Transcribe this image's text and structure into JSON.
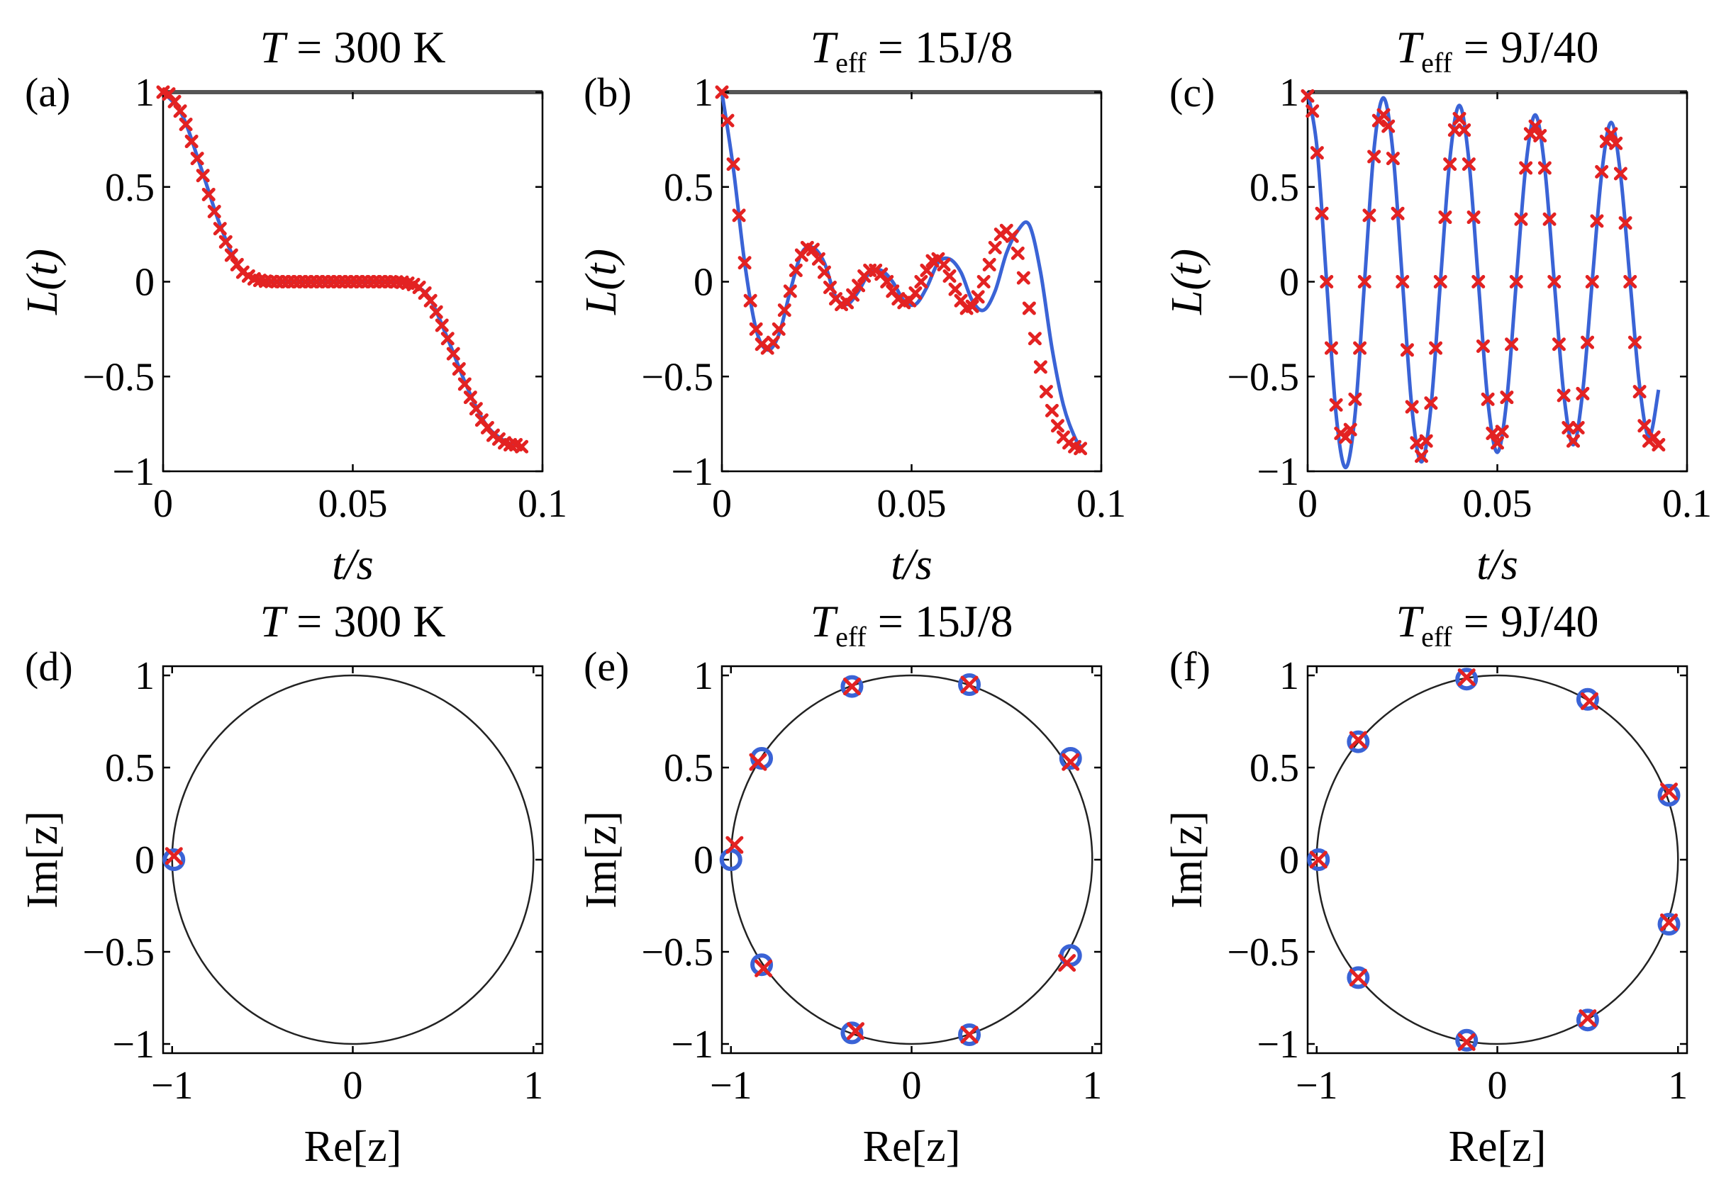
{
  "chart_data": [
    {
      "id": "a",
      "label": "(a)",
      "type": "line",
      "title": {
        "main": "T",
        "sub": "",
        "rest": " = 300 K"
      },
      "xlabel": "t/s",
      "ylabel": "L(t)",
      "xlim": [
        0,
        0.1
      ],
      "ylim": [
        -1,
        1
      ],
      "xticks": [
        0,
        0.05,
        0.1
      ],
      "xtick_labels": [
        "0",
        "0.05",
        "0.1"
      ],
      "yticks": [
        -1,
        -0.5,
        0,
        0.5,
        1
      ],
      "ytick_labels": [
        "−1",
        "−0.5",
        "0",
        "0.5",
        "1"
      ],
      "series": [
        {
          "style": "blue-line",
          "x": [
            0,
            0.005,
            0.01,
            0.015,
            0.02,
            0.025,
            0.03,
            0.04,
            0.05,
            0.06,
            0.065,
            0.07,
            0.075,
            0.08,
            0.085,
            0.09,
            0.093,
            0.095
          ],
          "y": [
            1,
            0.88,
            0.6,
            0.3,
            0.08,
            0.01,
            0,
            0,
            0,
            0,
            -0.01,
            -0.08,
            -0.3,
            -0.55,
            -0.75,
            -0.84,
            -0.86,
            -0.87
          ]
        },
        {
          "style": "red-x",
          "x": [
            0,
            0.0015,
            0.003,
            0.0045,
            0.006,
            0.0075,
            0.009,
            0.0105,
            0.012,
            0.0135,
            0.015,
            0.0165,
            0.018,
            0.0195,
            0.021,
            0.0225,
            0.024,
            0.0255,
            0.027,
            0.0285,
            0.03,
            0.0315,
            0.033,
            0.0345,
            0.036,
            0.0375,
            0.039,
            0.0405,
            0.042,
            0.0435,
            0.045,
            0.0465,
            0.048,
            0.0495,
            0.051,
            0.0525,
            0.054,
            0.0555,
            0.057,
            0.0585,
            0.06,
            0.0615,
            0.063,
            0.0645,
            0.066,
            0.0675,
            0.069,
            0.0705,
            0.072,
            0.0735,
            0.075,
            0.0765,
            0.078,
            0.0795,
            0.081,
            0.0825,
            0.084,
            0.0855,
            0.087,
            0.0885,
            0.09,
            0.0915,
            0.093,
            0.0945
          ],
          "y": [
            1,
            0.99,
            0.95,
            0.9,
            0.83,
            0.74,
            0.65,
            0.56,
            0.46,
            0.37,
            0.28,
            0.21,
            0.14,
            0.09,
            0.05,
            0.03,
            0.015,
            0.007,
            0.003,
            0.001,
            0,
            0,
            0,
            0,
            0,
            0,
            0,
            0,
            0,
            0,
            0,
            0,
            0,
            0,
            0,
            0,
            0,
            0,
            0,
            0,
            0,
            -0.001,
            -0.003,
            -0.008,
            -0.015,
            -0.03,
            -0.06,
            -0.1,
            -0.16,
            -0.23,
            -0.3,
            -0.38,
            -0.46,
            -0.54,
            -0.61,
            -0.67,
            -0.73,
            -0.77,
            -0.81,
            -0.83,
            -0.85,
            -0.86,
            -0.86,
            -0.87
          ]
        }
      ]
    },
    {
      "id": "b",
      "label": "(b)",
      "type": "line",
      "title": {
        "main": "T",
        "sub": "eff",
        "rest": " = 15J/8"
      },
      "xlabel": "t/s",
      "ylabel": "L(t)",
      "xlim": [
        0,
        0.1
      ],
      "ylim": [
        -1,
        1
      ],
      "xticks": [
        0,
        0.05,
        0.1
      ],
      "xtick_labels": [
        "0",
        "0.05",
        "0.1"
      ],
      "yticks": [
        -1,
        -0.5,
        0,
        0.5,
        1
      ],
      "ytick_labels": [
        "−1",
        "−0.5",
        "0",
        "0.5",
        "1"
      ],
      "series": [
        {
          "style": "blue-line",
          "x": [
            0,
            0.003,
            0.006,
            0.009,
            0.012,
            0.015,
            0.018,
            0.021,
            0.024,
            0.027,
            0.03,
            0.033,
            0.036,
            0.039,
            0.042,
            0.045,
            0.048,
            0.051,
            0.054,
            0.057,
            0.06,
            0.063,
            0.066,
            0.069,
            0.072,
            0.075,
            0.078,
            0.081,
            0.084,
            0.087,
            0.09,
            0.093,
            0.095
          ],
          "y": [
            1,
            0.6,
            0.1,
            -0.25,
            -0.36,
            -0.28,
            -0.05,
            0.15,
            0.18,
            0.1,
            -0.08,
            -0.12,
            -0.05,
            0.05,
            0.06,
            0,
            -0.1,
            -0.12,
            -0.03,
            0.1,
            0.12,
            0.05,
            -0.1,
            -0.15,
            -0.05,
            0.15,
            0.27,
            0.3,
            0.05,
            -0.35,
            -0.65,
            -0.82,
            -0.88
          ]
        },
        {
          "style": "red-x",
          "x": [
            0,
            0.0015,
            0.003,
            0.0045,
            0.006,
            0.0075,
            0.009,
            0.0105,
            0.012,
            0.0135,
            0.015,
            0.0165,
            0.018,
            0.0195,
            0.021,
            0.0225,
            0.024,
            0.0255,
            0.027,
            0.0285,
            0.03,
            0.0315,
            0.033,
            0.0345,
            0.036,
            0.0375,
            0.039,
            0.0405,
            0.042,
            0.0435,
            0.045,
            0.0465,
            0.048,
            0.0495,
            0.051,
            0.0525,
            0.054,
            0.0555,
            0.057,
            0.0585,
            0.06,
            0.0615,
            0.063,
            0.0645,
            0.066,
            0.0675,
            0.069,
            0.0705,
            0.072,
            0.0735,
            0.075,
            0.0765,
            0.078,
            0.0795,
            0.081,
            0.0825,
            0.084,
            0.0855,
            0.087,
            0.0885,
            0.09,
            0.0915,
            0.093,
            0.0945
          ],
          "y": [
            1,
            0.85,
            0.62,
            0.35,
            0.1,
            -0.1,
            -0.25,
            -0.33,
            -0.35,
            -0.32,
            -0.25,
            -0.15,
            -0.05,
            0.06,
            0.14,
            0.18,
            0.17,
            0.12,
            0.05,
            -0.03,
            -0.09,
            -0.12,
            -0.11,
            -0.07,
            -0.02,
            0.03,
            0.06,
            0.06,
            0.04,
            0,
            -0.05,
            -0.09,
            -0.11,
            -0.1,
            -0.06,
            0,
            0.06,
            0.11,
            0.12,
            0.09,
            0.03,
            -0.04,
            -0.1,
            -0.14,
            -0.13,
            -0.08,
            0,
            0.09,
            0.18,
            0.25,
            0.27,
            0.24,
            0.15,
            0.02,
            -0.14,
            -0.3,
            -0.45,
            -0.58,
            -0.68,
            -0.76,
            -0.82,
            -0.85,
            -0.87,
            -0.88
          ]
        }
      ]
    },
    {
      "id": "c",
      "label": "(c)",
      "type": "line",
      "title": {
        "main": "T",
        "sub": "eff",
        "rest": " = 9J/40"
      },
      "xlabel": "t/s",
      "ylabel": "L(t)",
      "xlim": [
        0,
        0.1
      ],
      "ylim": [
        -1,
        1
      ],
      "xticks": [
        0,
        0.05,
        0.1
      ],
      "xtick_labels": [
        "0",
        "0.05",
        "0.1"
      ],
      "yticks": [
        -1,
        -0.5,
        0,
        0.5,
        1
      ],
      "ytick_labels": [
        "−1",
        "−0.5",
        "0",
        "0.5",
        "1"
      ],
      "series": [
        {
          "style": "blue-line",
          "x": [
            0,
            0.0025,
            0.005,
            0.0075,
            0.01,
            0.0125,
            0.015,
            0.0175,
            0.02,
            0.0225,
            0.025,
            0.0275,
            0.03,
            0.0325,
            0.035,
            0.0375,
            0.04,
            0.0425,
            0.045,
            0.0475,
            0.05,
            0.0525,
            0.055,
            0.0575,
            0.06,
            0.0625,
            0.065,
            0.0675,
            0.07,
            0.0725,
            0.075,
            0.0775,
            0.08,
            0.0825,
            0.085,
            0.0875,
            0.09,
            0.0925
          ],
          "y": [
            1,
            0.7,
            0,
            -0.7,
            -0.98,
            -0.7,
            0,
            0.7,
            0.97,
            0.68,
            0,
            -0.67,
            -0.95,
            -0.66,
            0,
            0.65,
            0.93,
            0.64,
            0,
            -0.63,
            -0.9,
            -0.62,
            0,
            0.61,
            0.88,
            0.6,
            0,
            -0.59,
            -0.86,
            -0.58,
            0,
            0.57,
            0.84,
            0.56,
            0,
            -0.55,
            -0.82,
            -0.57
          ]
        },
        {
          "style": "red-x",
          "x": [
            0,
            0.00125,
            0.0025,
            0.00375,
            0.005,
            0.00625,
            0.0075,
            0.00875,
            0.01,
            0.01125,
            0.0125,
            0.01375,
            0.015,
            0.01625,
            0.0175,
            0.01875,
            0.02,
            0.02125,
            0.0225,
            0.02375,
            0.025,
            0.02625,
            0.0275,
            0.02875,
            0.03,
            0.03125,
            0.0325,
            0.03375,
            0.035,
            0.03625,
            0.0375,
            0.03875,
            0.04,
            0.04125,
            0.0425,
            0.04375,
            0.045,
            0.04625,
            0.0475,
            0.04875,
            0.05,
            0.05125,
            0.0525,
            0.05375,
            0.055,
            0.05625,
            0.0575,
            0.05875,
            0.06,
            0.06125,
            0.0625,
            0.06375,
            0.065,
            0.06625,
            0.0675,
            0.06875,
            0.07,
            0.07125,
            0.0725,
            0.07375,
            0.075,
            0.07625,
            0.0775,
            0.07875,
            0.08,
            0.08125,
            0.0825,
            0.08375,
            0.085,
            0.08625,
            0.0875,
            0.08875,
            0.09,
            0.09125,
            0.0925
          ],
          "y": [
            0.98,
            0.9,
            0.68,
            0.36,
            0,
            -0.35,
            -0.65,
            -0.8,
            -0.82,
            -0.78,
            -0.62,
            -0.35,
            0,
            0.35,
            0.66,
            0.85,
            0.88,
            0.82,
            0.65,
            0.36,
            0,
            -0.36,
            -0.66,
            -0.85,
            -0.92,
            -0.84,
            -0.64,
            -0.35,
            0,
            0.34,
            0.62,
            0.8,
            0.86,
            0.8,
            0.62,
            0.34,
            0,
            -0.34,
            -0.62,
            -0.8,
            -0.85,
            -0.79,
            -0.61,
            -0.33,
            0,
            0.33,
            0.6,
            0.78,
            0.82,
            0.77,
            0.6,
            0.33,
            0,
            -0.33,
            -0.6,
            -0.77,
            -0.84,
            -0.77,
            -0.59,
            -0.32,
            0,
            0.32,
            0.58,
            0.74,
            0.78,
            0.73,
            0.57,
            0.31,
            0,
            -0.32,
            -0.58,
            -0.76,
            -0.84,
            -0.82,
            -0.86
          ]
        }
      ]
    },
    {
      "id": "d",
      "label": "(d)",
      "type": "scatter",
      "title": {
        "main": "T",
        "sub": "",
        "rest": " = 300 K"
      },
      "xlabel": "Re[z]",
      "ylabel": "Im[z]",
      "xlim": [
        -1.05,
        1.05
      ],
      "ylim": [
        -1.05,
        1.05
      ],
      "unit_circle": true,
      "xticks": [
        -1,
        0,
        1
      ],
      "xtick_labels": [
        "−1",
        "0",
        "1"
      ],
      "yticks": [
        -1,
        -0.5,
        0,
        0.5,
        1
      ],
      "ytick_labels": [
        "−1",
        "−0.5",
        "0",
        "0.5",
        "1"
      ],
      "series": [
        {
          "style": "blue-o",
          "x": [
            -0.99
          ],
          "y": [
            0
          ]
        },
        {
          "style": "red-x",
          "x": [
            -0.99
          ],
          "y": [
            0.02
          ]
        }
      ]
    },
    {
      "id": "e",
      "label": "(e)",
      "type": "scatter",
      "title": {
        "main": "T",
        "sub": "eff",
        "rest": " = 15J/8"
      },
      "xlabel": "Re[z]",
      "ylabel": "Im[z]",
      "xlim": [
        -1.05,
        1.05
      ],
      "ylim": [
        -1.05,
        1.05
      ],
      "unit_circle": true,
      "xticks": [
        -1,
        0,
        1
      ],
      "xtick_labels": [
        "−1",
        "0",
        "1"
      ],
      "yticks": [
        -1,
        -0.5,
        0,
        0.5,
        1
      ],
      "ytick_labels": [
        "−1",
        "−0.5",
        "0",
        "0.5",
        "1"
      ],
      "series": [
        {
          "style": "blue-o",
          "x": [
            -1,
            -0.83,
            -0.33,
            0.32,
            0.88,
            0.88,
            0.32,
            -0.33,
            -0.83
          ],
          "y": [
            0,
            0.55,
            0.94,
            0.95,
            0.55,
            -0.52,
            -0.95,
            -0.94,
            -0.57
          ]
        },
        {
          "style": "red-x",
          "x": [
            -0.98,
            -0.85,
            -0.33,
            0.32,
            0.88,
            0.86,
            0.32,
            -0.31,
            -0.82
          ],
          "y": [
            0.08,
            0.53,
            0.94,
            0.95,
            0.53,
            -0.56,
            -0.95,
            -0.93,
            -0.59
          ]
        }
      ]
    },
    {
      "id": "f",
      "label": "(f)",
      "type": "scatter",
      "title": {
        "main": "T",
        "sub": "eff",
        "rest": " = 9J/40"
      },
      "xlabel": "Re[z]",
      "ylabel": "Im[z]",
      "xlim": [
        -1.05,
        1.05
      ],
      "ylim": [
        -1.05,
        1.05
      ],
      "unit_circle": true,
      "xticks": [
        -1,
        0,
        1
      ],
      "xtick_labels": [
        "−1",
        "0",
        "1"
      ],
      "yticks": [
        -1,
        -0.5,
        0,
        0.5,
        1
      ],
      "ytick_labels": [
        "−1",
        "−0.5",
        "0",
        "0.5",
        "1"
      ],
      "series": [
        {
          "style": "blue-o",
          "x": [
            -0.99,
            -0.77,
            -0.17,
            0.5,
            0.95,
            0.95,
            0.5,
            -0.17,
            -0.77
          ],
          "y": [
            0,
            0.64,
            0.98,
            0.87,
            0.35,
            -0.35,
            -0.87,
            -0.98,
            -0.64
          ]
        },
        {
          "style": "red-x",
          "x": [
            -0.99,
            -0.77,
            -0.17,
            0.51,
            0.95,
            0.95,
            0.5,
            -0.17,
            -0.77
          ],
          "y": [
            0,
            0.65,
            0.99,
            0.86,
            0.37,
            -0.34,
            -0.86,
            -0.99,
            -0.64
          ]
        }
      ]
    }
  ]
}
